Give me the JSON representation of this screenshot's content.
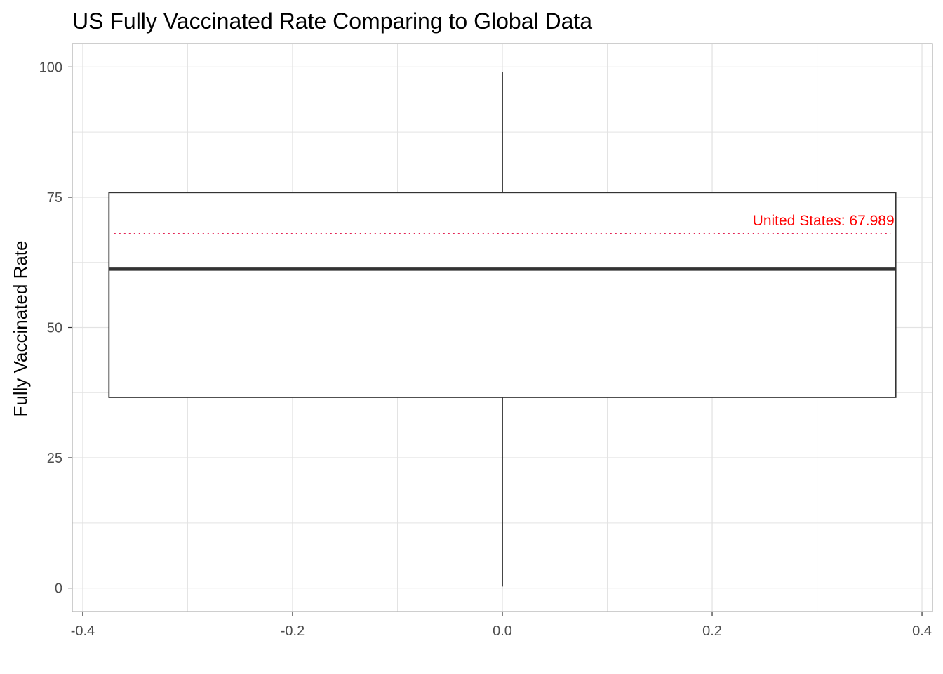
{
  "chart_data": {
    "type": "boxplot",
    "title": "US Fully Vaccinated Rate Comparing to Global Data",
    "xlabel": "",
    "ylabel": "Fully Vaccinated Rate",
    "xlim": [
      -0.41,
      0.41
    ],
    "ylim": [
      -4.5,
      104.5
    ],
    "x_ticks": [
      -0.4,
      -0.2,
      0.0,
      0.2,
      0.4
    ],
    "x_tick_labels": [
      "-0.4",
      "-0.2",
      "0.0",
      "0.2",
      "0.4"
    ],
    "y_ticks": [
      0,
      25,
      50,
      75,
      100
    ],
    "y_tick_labels": [
      "0",
      "25",
      "50",
      "75",
      "100"
    ],
    "grid": true,
    "box": {
      "x_center": 0.0,
      "x_min": -0.375,
      "x_max": 0.375,
      "whisker_low": 0.3,
      "q1": 36.6,
      "median": 61.2,
      "q3": 75.9,
      "whisker_high": 99.0
    },
    "reference_line": {
      "value": 67.989,
      "x_from": -0.37,
      "x_to": 0.37,
      "style": "dotted",
      "color": "#e0003a"
    },
    "annotation": {
      "text": "United States: 67.989",
      "x": 0.375,
      "y": 67.989,
      "color": "#ff0000"
    },
    "colors": {
      "panel_border": "#b3b3b3",
      "grid": "#e3e3e3",
      "box_line": "#333333",
      "whisker": "#1a1a1a",
      "tick": "#333333"
    }
  }
}
